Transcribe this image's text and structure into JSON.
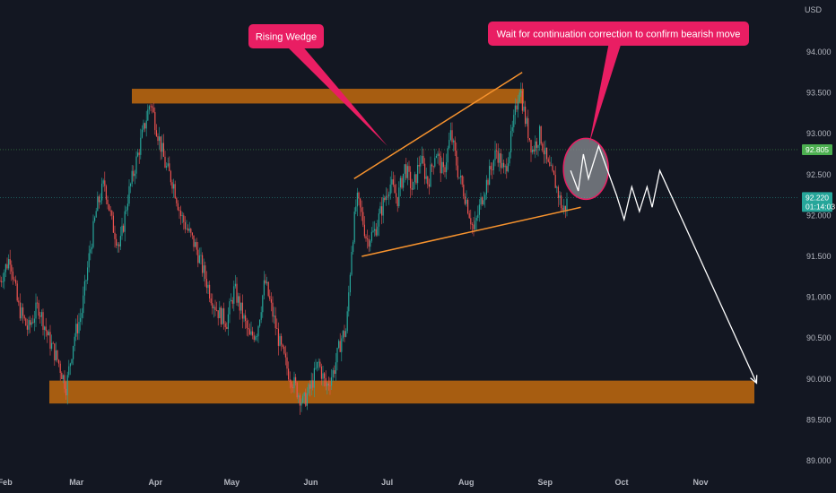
{
  "chart_data": {
    "type": "candlestick",
    "currency_label": "USD",
    "y_axis": {
      "ticks": [
        89.0,
        89.5,
        90.0,
        90.5,
        91.0,
        91.5,
        92.0,
        92.5,
        93.0,
        93.5,
        94.0
      ],
      "ylim": [
        88.85,
        94.55
      ],
      "position": "right"
    },
    "x_axis": {
      "ticks": [
        {
          "label": "Feb",
          "date": "2021-02-01"
        },
        {
          "label": "Mar",
          "date": "2021-03-01"
        },
        {
          "label": "Apr",
          "date": "2021-04-01"
        },
        {
          "label": "May",
          "date": "2021-05-01"
        },
        {
          "label": "Jun",
          "date": "2021-06-01"
        },
        {
          "label": "Jul",
          "date": "2021-07-01"
        },
        {
          "label": "Aug",
          "date": "2021-08-01"
        },
        {
          "label": "Sep",
          "date": "2021-09-01"
        },
        {
          "label": "Oct",
          "date": "2021-10-01"
        },
        {
          "label": "Nov",
          "date": "2021-11-01"
        }
      ]
    },
    "price_path": [
      {
        "date": "2021-01-30",
        "price": 91.2
      },
      {
        "date": "2021-02-03",
        "price": 91.5
      },
      {
        "date": "2021-02-06",
        "price": 90.9
      },
      {
        "date": "2021-02-10",
        "price": 90.6
      },
      {
        "date": "2021-02-14",
        "price": 90.9
      },
      {
        "date": "2021-02-18",
        "price": 90.5
      },
      {
        "date": "2021-02-22",
        "price": 90.2
      },
      {
        "date": "2021-02-25",
        "price": 89.9
      },
      {
        "date": "2021-02-28",
        "price": 90.5
      },
      {
        "date": "2021-03-03",
        "price": 90.8
      },
      {
        "date": "2021-03-06",
        "price": 91.5
      },
      {
        "date": "2021-03-09",
        "price": 92.1
      },
      {
        "date": "2021-03-12",
        "price": 92.4
      },
      {
        "date": "2021-03-15",
        "price": 91.9
      },
      {
        "date": "2021-03-18",
        "price": 91.6
      },
      {
        "date": "2021-03-21",
        "price": 92.2
      },
      {
        "date": "2021-03-24",
        "price": 92.6
      },
      {
        "date": "2021-03-27",
        "price": 93.0
      },
      {
        "date": "2021-03-30",
        "price": 93.4
      },
      {
        "date": "2021-04-02",
        "price": 93.0
      },
      {
        "date": "2021-04-05",
        "price": 92.6
      },
      {
        "date": "2021-04-08",
        "price": 92.4
      },
      {
        "date": "2021-04-11",
        "price": 92.0
      },
      {
        "date": "2021-04-14",
        "price": 91.8
      },
      {
        "date": "2021-04-17",
        "price": 91.6
      },
      {
        "date": "2021-04-20",
        "price": 91.3
      },
      {
        "date": "2021-04-23",
        "price": 91.0
      },
      {
        "date": "2021-04-26",
        "price": 90.8
      },
      {
        "date": "2021-04-29",
        "price": 90.7
      },
      {
        "date": "2021-05-02",
        "price": 91.1
      },
      {
        "date": "2021-05-05",
        "price": 90.8
      },
      {
        "date": "2021-05-08",
        "price": 90.5
      },
      {
        "date": "2021-05-11",
        "price": 90.6
      },
      {
        "date": "2021-05-14",
        "price": 91.2
      },
      {
        "date": "2021-05-17",
        "price": 90.8
      },
      {
        "date": "2021-05-20",
        "price": 90.4
      },
      {
        "date": "2021-05-23",
        "price": 90.1
      },
      {
        "date": "2021-05-26",
        "price": 89.9
      },
      {
        "date": "2021-05-29",
        "price": 89.7
      },
      {
        "date": "2021-06-01",
        "price": 89.9
      },
      {
        "date": "2021-06-04",
        "price": 90.2
      },
      {
        "date": "2021-06-07",
        "price": 89.9
      },
      {
        "date": "2021-06-10",
        "price": 90.1
      },
      {
        "date": "2021-06-13",
        "price": 90.5
      },
      {
        "date": "2021-06-15",
        "price": 90.6
      },
      {
        "date": "2021-06-17",
        "price": 91.6
      },
      {
        "date": "2021-06-19",
        "price": 92.2
      },
      {
        "date": "2021-06-21",
        "price": 92.0
      },
      {
        "date": "2021-06-23",
        "price": 91.7
      },
      {
        "date": "2021-06-26",
        "price": 91.8
      },
      {
        "date": "2021-06-29",
        "price": 92.1
      },
      {
        "date": "2021-07-02",
        "price": 92.4
      },
      {
        "date": "2021-07-05",
        "price": 92.2
      },
      {
        "date": "2021-07-08",
        "price": 92.6
      },
      {
        "date": "2021-07-11",
        "price": 92.3
      },
      {
        "date": "2021-07-14",
        "price": 92.7
      },
      {
        "date": "2021-07-17",
        "price": 92.4
      },
      {
        "date": "2021-07-20",
        "price": 92.8
      },
      {
        "date": "2021-07-23",
        "price": 92.5
      },
      {
        "date": "2021-07-26",
        "price": 93.0
      },
      {
        "date": "2021-07-29",
        "price": 92.5
      },
      {
        "date": "2021-08-01",
        "price": 92.2
      },
      {
        "date": "2021-08-04",
        "price": 91.8
      },
      {
        "date": "2021-08-07",
        "price": 92.2
      },
      {
        "date": "2021-08-10",
        "price": 92.5
      },
      {
        "date": "2021-08-13",
        "price": 92.8
      },
      {
        "date": "2021-08-16",
        "price": 92.5
      },
      {
        "date": "2021-08-19",
        "price": 93.0
      },
      {
        "date": "2021-08-22",
        "price": 93.6
      },
      {
        "date": "2021-08-24",
        "price": 93.2
      },
      {
        "date": "2021-08-27",
        "price": 92.8
      },
      {
        "date": "2021-08-30",
        "price": 93.0
      },
      {
        "date": "2021-09-02",
        "price": 92.6
      },
      {
        "date": "2021-09-05",
        "price": 92.4
      },
      {
        "date": "2021-09-08",
        "price": 92.05
      },
      {
        "date": "2021-09-10",
        "price": 92.2
      }
    ],
    "support_zone": {
      "from": 89.7,
      "to": 89.98
    },
    "resistance_zone": {
      "from": 93.37,
      "to": 93.55
    },
    "wedge_upper_line": [
      {
        "date": "2021-06-18",
        "price": 92.45
      },
      {
        "date": "2021-08-23",
        "price": 93.75
      }
    ],
    "wedge_lower_line": [
      {
        "date": "2021-06-21",
        "price": 91.5
      },
      {
        "date": "2021-09-15",
        "price": 92.1
      }
    ],
    "projection_path": [
      {
        "date": "2021-09-11",
        "price": 92.55
      },
      {
        "date": "2021-09-14",
        "price": 92.3
      },
      {
        "date": "2021-09-16",
        "price": 92.75
      },
      {
        "date": "2021-09-18",
        "price": 92.45
      },
      {
        "date": "2021-09-22",
        "price": 92.85
      },
      {
        "date": "2021-09-29",
        "price": 92.25
      },
      {
        "date": "2021-10-02",
        "price": 91.95
      },
      {
        "date": "2021-10-05",
        "price": 92.35
      },
      {
        "date": "2021-10-08",
        "price": 92.05
      },
      {
        "date": "2021-10-11",
        "price": 92.35
      },
      {
        "date": "2021-10-13",
        "price": 92.1
      },
      {
        "date": "2021-10-16",
        "price": 92.55
      },
      {
        "date": "2021-11-23",
        "price": 89.95
      }
    ],
    "projection_zone": {
      "center": {
        "date": "2021-09-17",
        "price": 92.57
      }
    },
    "price_lines": [
      {
        "price": 92.805,
        "label": "92.805",
        "color": "#4caf50"
      },
      {
        "price": 92.22,
        "label": "92.220",
        "sublabel": "01:14:03",
        "color": "#26a69a"
      }
    ],
    "annotations": [
      {
        "text": "Rising Wedge",
        "color": "#e91e63"
      },
      {
        "text": "Wait for continuation correction to confirm bearish move",
        "color": "#e91e63"
      }
    ],
    "colors": {
      "up": "#26a69a",
      "down": "#ef5350",
      "zone": "#b8650f",
      "wedge": "#f7932e",
      "projection": "#ffffff",
      "background": "#131722"
    }
  }
}
